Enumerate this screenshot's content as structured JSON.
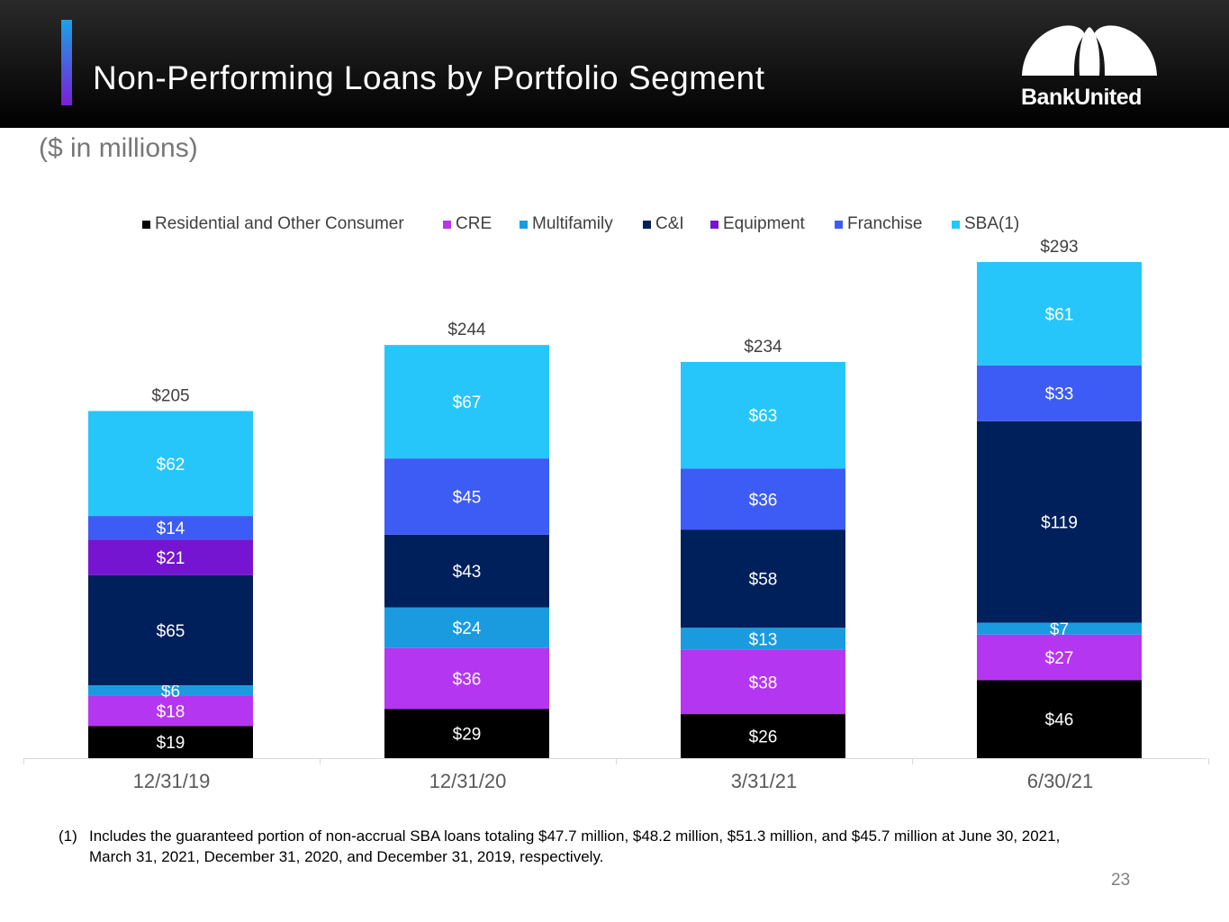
{
  "header": {
    "title": "Non-Performing Loans by Portfolio Segment",
    "logo_text": "BankUnited"
  },
  "subtitle": "($ in millions)",
  "colors": {
    "header_bg": "#000000",
    "accent_top": "#1aa3e6",
    "accent_bottom": "#7a1fd6"
  },
  "chart_data": {
    "type": "bar",
    "stacked": true,
    "categories": [
      "12/31/19",
      "12/31/20",
      "3/31/21",
      "6/30/21"
    ],
    "series": [
      {
        "name": "Residential and Other Consumer",
        "color": "#000000",
        "values": [
          19,
          29,
          26,
          46
        ],
        "labels": [
          "$19",
          "$29",
          "$26",
          "$46"
        ]
      },
      {
        "name": "CRE",
        "color": "#b536f0",
        "values": [
          18,
          36,
          38,
          27
        ],
        "labels": [
          "$18",
          "$36",
          "$38",
          "$27"
        ]
      },
      {
        "name": "Multifamily",
        "color": "#1a9be0",
        "values": [
          6,
          24,
          13,
          7
        ],
        "labels": [
          "$6",
          "$24",
          "$13",
          "$7"
        ]
      },
      {
        "name": "C&I",
        "color": "#00205b",
        "values": [
          65,
          43,
          58,
          119
        ],
        "labels": [
          "$65",
          "$43",
          "$58",
          "$119"
        ]
      },
      {
        "name": "Equipment",
        "color": "#7615d1",
        "values": [
          21,
          0,
          0,
          0
        ],
        "labels": [
          "$21",
          "",
          "",
          ""
        ]
      },
      {
        "name": "Franchise",
        "color": "#3d5cf5",
        "values": [
          14,
          45,
          36,
          33
        ],
        "labels": [
          "$14",
          "$45",
          "$36",
          "$33"
        ]
      },
      {
        "name": "SBA(1)",
        "color": "#27c6fa",
        "values": [
          62,
          67,
          63,
          61
        ],
        "labels": [
          "$62",
          "$67",
          "$63",
          "$61"
        ]
      }
    ],
    "totals": [
      205,
      244,
      234,
      293
    ],
    "total_labels": [
      "$205",
      "$244",
      "$234",
      "$293"
    ],
    "title": "",
    "ylabel": "$ in millions",
    "ylim": [
      0,
      293
    ],
    "legend_position": "top",
    "grid": false
  },
  "footnote": {
    "marker": "(1)",
    "text": "Includes the guaranteed portion of non-accrual SBA loans totaling $47.7 million, $48.2 million, $51.3 million, and $45.7 million at June 30, 2021, March 31, 2021, December 31, 2020, and December 31, 2019, respectively."
  },
  "page_number": "23"
}
